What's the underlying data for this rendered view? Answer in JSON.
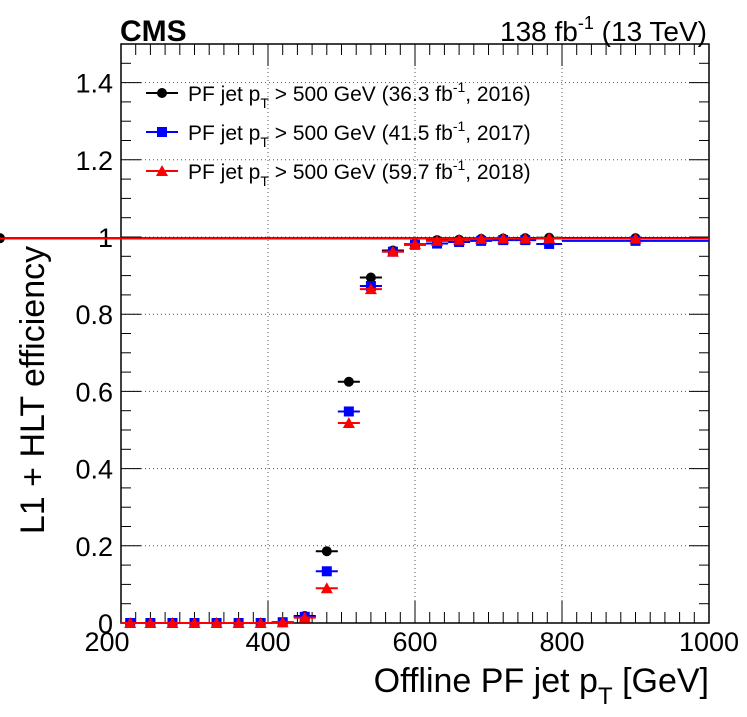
{
  "chart_data": {
    "type": "scatter",
    "title_left": "CMS",
    "lumi": {
      "value": "138",
      "unit_base": "fb",
      "unit_exp": "-1",
      "energy": "(13 TeV)"
    },
    "xlabel": {
      "main": "Offline PF jet p",
      "sub": "T",
      "unit": "[GeV]"
    },
    "ylabel": "L1 + HLT efficiency",
    "xlim": [
      200,
      1000
    ],
    "ylim": [
      0,
      1.5
    ],
    "grid": true,
    "x_ticks": [
      "200",
      "400",
      "600",
      "800",
      "1000"
    ],
    "y_ticks": [
      "0",
      "0.2",
      "0.4",
      "0.6",
      "0.8",
      "1",
      "1.2",
      "1.4"
    ],
    "legend_position": "top-left",
    "series": [
      {
        "name": "2016",
        "color": "#000000",
        "marker": "circle",
        "legend": {
          "pre": "PF jet p",
          "sub": "T",
          "mid": " > 500 GeV (36.3 fb",
          "sup": "-1",
          "post": ", 2016)"
        },
        "bin_edges": [
          200,
          225,
          255,
          285,
          315,
          345,
          375,
          405,
          435,
          465,
          495,
          525,
          555,
          585,
          615,
          645,
          675,
          705,
          735,
          765,
          800,
          1000
        ],
        "values": [
          0,
          0,
          0,
          0,
          0,
          0,
          0,
          0.002,
          0.018,
          0.186,
          0.625,
          0.895,
          0.965,
          0.982,
          0.992,
          0.993,
          0.995,
          0.996,
          0.997,
          0.998,
          0.997,
          0.997
        ]
      },
      {
        "name": "2017",
        "color": "#0000ff",
        "marker": "square",
        "legend": {
          "pre": "PF jet p",
          "sub": "T",
          "mid": " > 500 GeV (41.5 fb",
          "sup": "-1",
          "post": ", 2017)"
        },
        "bin_edges": [
          200,
          225,
          255,
          285,
          315,
          345,
          375,
          405,
          435,
          465,
          495,
          525,
          555,
          585,
          615,
          645,
          675,
          705,
          735,
          765,
          800,
          1000
        ],
        "values": [
          0,
          0,
          0,
          0,
          0,
          0,
          0,
          0.002,
          0.016,
          0.134,
          0.548,
          0.873,
          0.962,
          0.98,
          0.983,
          0.987,
          0.99,
          0.992,
          0.992,
          0.982,
          0.99
        ]
      },
      {
        "name": "2018",
        "color": "#ff0000",
        "marker": "triangle",
        "legend": {
          "pre": "PF jet p",
          "sub": "T",
          "mid": " > 500 GeV (59.7 fb",
          "sup": "-1",
          "post": ", 2018)"
        },
        "bin_edges": [
          200,
          225,
          255,
          285,
          315,
          345,
          375,
          405,
          435,
          465,
          495,
          525,
          555,
          585,
          615,
          645,
          675,
          705,
          735,
          765,
          800,
          1000
        ],
        "values": [
          0,
          0,
          0,
          0,
          0,
          0,
          0,
          0.002,
          0.014,
          0.09,
          0.518,
          0.865,
          0.962,
          0.982,
          0.99,
          0.993,
          0.995,
          0.996,
          0.996,
          0.997,
          0.996,
          0.996
        ]
      }
    ]
  }
}
